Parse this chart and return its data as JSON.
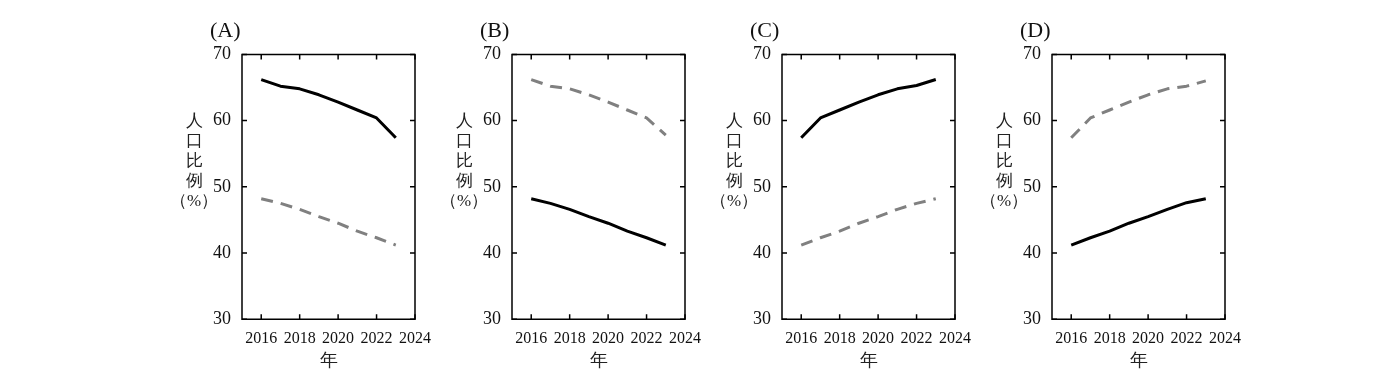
{
  "chart_data": [
    {
      "type": "line",
      "title": "(A)",
      "xlabel": "年",
      "ylabel": "人口比例（%）",
      "x": [
        2016,
        2017,
        2018,
        2019,
        2020,
        2021,
        2022,
        2023
      ],
      "xlim": [
        2015,
        2024
      ],
      "xticks": [
        2016,
        2018,
        2020,
        2022,
        2024
      ],
      "ylim": [
        30,
        70
      ],
      "yticks": [
        30,
        40,
        50,
        60,
        70
      ],
      "series": [
        {
          "color": "#000000",
          "line_style": "solid",
          "values": [
            66.2,
            65.2,
            64.8,
            63.9,
            62.8,
            61.6,
            60.4,
            57.4
          ]
        },
        {
          "color": "#808080",
          "line_style": "dashed",
          "values": [
            48.2,
            47.5,
            46.6,
            45.5,
            44.5,
            43.3,
            42.3,
            41.2
          ]
        }
      ]
    },
    {
      "type": "line",
      "title": "(B)",
      "xlabel": "年",
      "ylabel": "人口比例（%）",
      "x": [
        2016,
        2017,
        2018,
        2019,
        2020,
        2021,
        2022,
        2023
      ],
      "xlim": [
        2015,
        2024
      ],
      "xticks": [
        2016,
        2018,
        2020,
        2022,
        2024
      ],
      "ylim": [
        30,
        70
      ],
      "yticks": [
        30,
        40,
        50,
        60,
        70
      ],
      "series": [
        {
          "color": "#808080",
          "line_style": "dashed",
          "values": [
            66.2,
            65.2,
            64.8,
            63.9,
            62.8,
            61.6,
            60.4,
            57.8
          ]
        },
        {
          "color": "#000000",
          "line_style": "solid",
          "values": [
            48.2,
            47.5,
            46.6,
            45.5,
            44.5,
            43.3,
            42.3,
            41.2
          ]
        }
      ]
    },
    {
      "type": "line",
      "title": "(C)",
      "xlabel": "年",
      "ylabel": "人口比例（%）",
      "x": [
        2016,
        2017,
        2018,
        2019,
        2020,
        2021,
        2022,
        2023
      ],
      "xlim": [
        2015,
        2024
      ],
      "xticks": [
        2016,
        2018,
        2020,
        2022,
        2024
      ],
      "ylim": [
        30,
        70
      ],
      "yticks": [
        30,
        40,
        50,
        60,
        70
      ],
      "series": [
        {
          "color": "#000000",
          "line_style": "solid",
          "values": [
            57.4,
            60.4,
            61.6,
            62.8,
            63.9,
            64.8,
            65.3,
            66.2
          ]
        },
        {
          "color": "#808080",
          "line_style": "dashed",
          "values": [
            41.2,
            42.3,
            43.3,
            44.5,
            45.5,
            46.6,
            47.5,
            48.2
          ]
        }
      ]
    },
    {
      "type": "line",
      "title": "(D)",
      "xlabel": "年",
      "ylabel": "人口比例（%）",
      "x": [
        2016,
        2017,
        2018,
        2019,
        2020,
        2021,
        2022,
        2023
      ],
      "xlim": [
        2015,
        2024
      ],
      "xticks": [
        2016,
        2018,
        2020,
        2022,
        2024
      ],
      "ylim": [
        30,
        70
      ],
      "yticks": [
        30,
        40,
        50,
        60,
        70
      ],
      "series": [
        {
          "color": "#808080",
          "line_style": "dashed",
          "values": [
            57.4,
            60.4,
            61.6,
            62.8,
            63.9,
            64.8,
            65.2,
            66.0
          ]
        },
        {
          "color": "#000000",
          "line_style": "solid",
          "values": [
            41.2,
            42.3,
            43.3,
            44.5,
            45.5,
            46.6,
            47.6,
            48.2
          ]
        }
      ]
    }
  ]
}
